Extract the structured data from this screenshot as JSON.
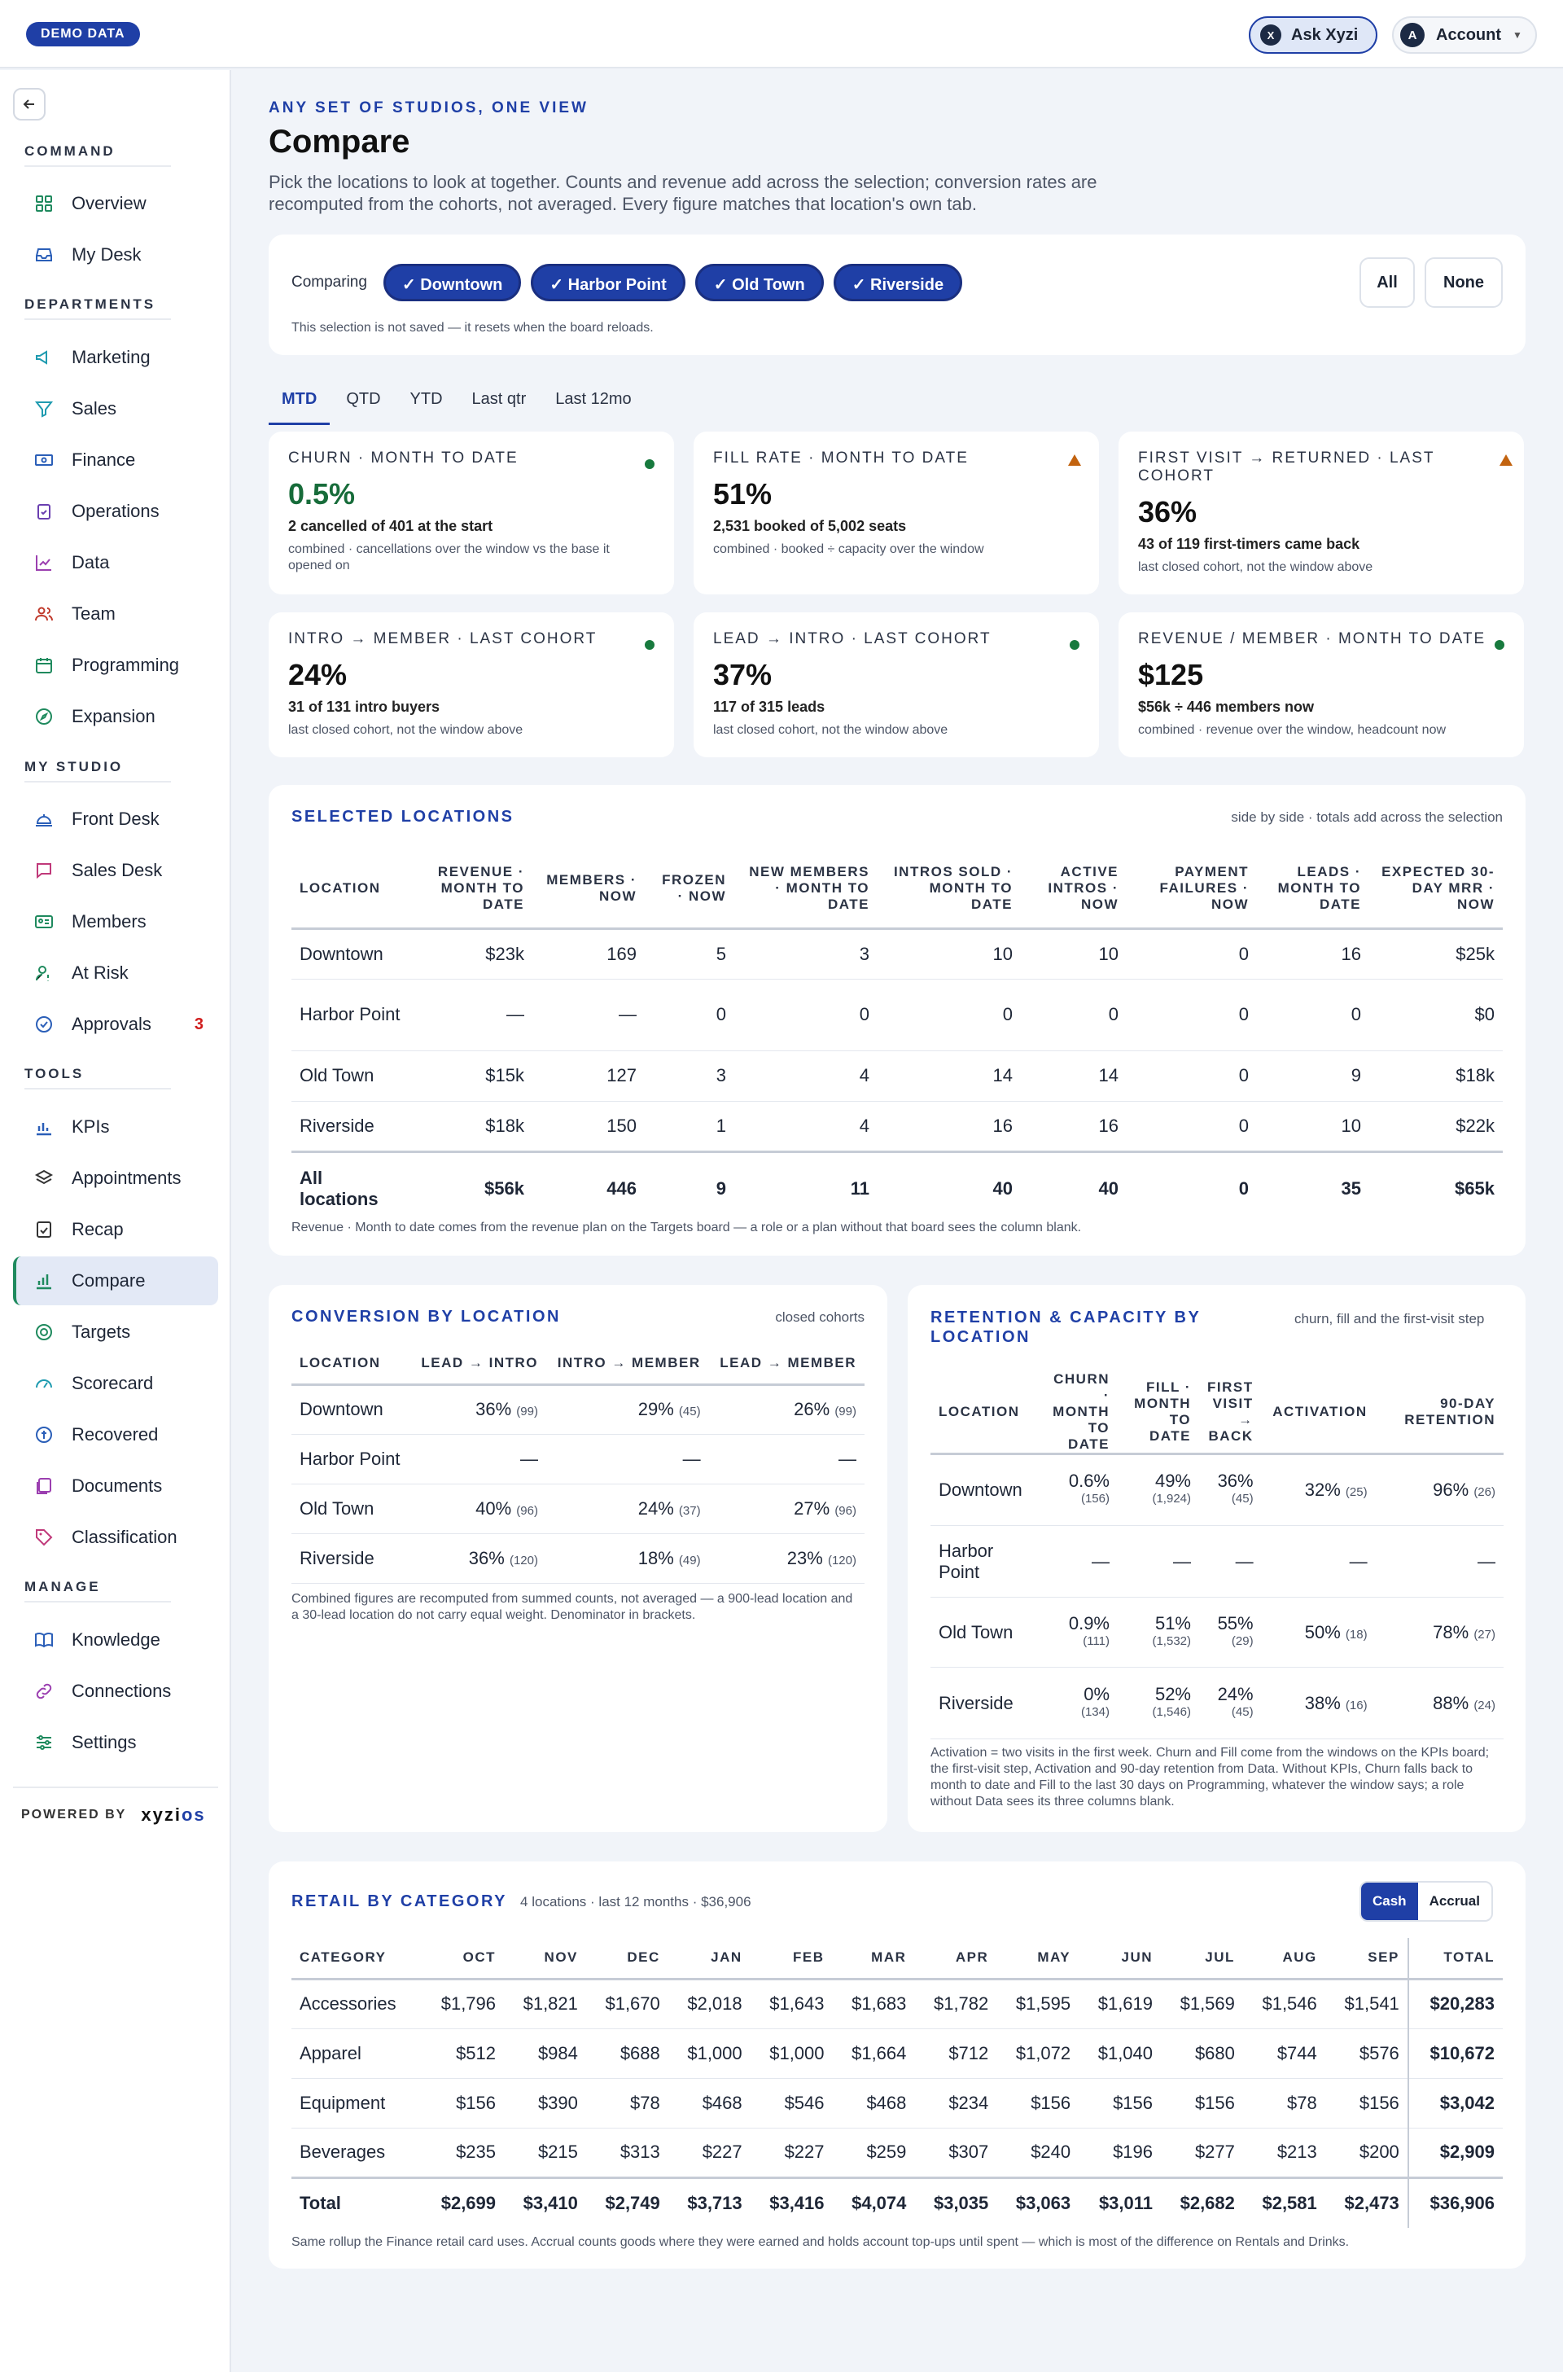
{
  "topbar": {
    "demo_badge": "DEMO DATA",
    "ask_label": "Ask Xyzi",
    "ask_icon_letter": "X",
    "account_label": "Account",
    "account_initial": "A"
  },
  "sidebar": {
    "sections": {
      "command": "COMMAND",
      "departments": "DEPARTMENTS",
      "my_studio": "MY STUDIO",
      "tools": "TOOLS",
      "manage": "MANAGE"
    },
    "items": {
      "overview": "Overview",
      "my_desk": "My Desk",
      "marketing": "Marketing",
      "sales": "Sales",
      "finance": "Finance",
      "operations": "Operations",
      "data": "Data",
      "team": "Team",
      "programming": "Programming",
      "expansion": "Expansion",
      "front_desk": "Front Desk",
      "sales_desk": "Sales Desk",
      "members": "Members",
      "at_risk": "At Risk",
      "approvals": "Approvals",
      "approvals_badge": "3",
      "kpis": "KPIs",
      "appointments": "Appointments",
      "recap": "Recap",
      "compare": "Compare",
      "targets": "Targets",
      "scorecard": "Scorecard",
      "recovered": "Recovered",
      "documents": "Documents",
      "classification": "Classification",
      "knowledge": "Knowledge",
      "connections": "Connections",
      "settings": "Settings"
    },
    "powered_by": "POWERED BY",
    "logo_a": "xyzi",
    "logo_b": "os"
  },
  "header": {
    "eyebrow": "ANY SET OF STUDIOS, ONE VIEW",
    "title": "Compare",
    "intro": "Pick the locations to look at together. Counts and revenue add across the selection; conversion rates are recomputed from the cohorts, not averaged. Every figure matches that location's own tab."
  },
  "selector": {
    "label": "Comparing",
    "locations": [
      "✓ Downtown",
      "✓ Harbor Point",
      "✓ Old Town",
      "✓ Riverside"
    ],
    "all": "All",
    "none": "None",
    "note": "This selection is not saved — it resets when the board reloads."
  },
  "tabs": [
    "MTD",
    "QTD",
    "YTD",
    "Last qtr",
    "Last 12mo"
  ],
  "kpis": [
    {
      "label": "CHURN · MONTH TO DATE",
      "value": "0.5%",
      "sub": "2 cancelled of 401 at the start",
      "note": "combined · cancellations over the window vs the base it opened on",
      "status": "good"
    },
    {
      "label": "FILL RATE · MONTH TO DATE",
      "value": "51%",
      "sub": "2,531 booked of 5,002 seats",
      "note": "combined · booked ÷ capacity over the window",
      "status": "warn"
    },
    {
      "label": "FIRST VISIT → RETURNED · LAST COHORT",
      "value": "36%",
      "sub": "43 of 119 first-timers came back",
      "note": "last closed cohort, not the window above",
      "status": "warn"
    },
    {
      "label": "INTRO → MEMBER · LAST COHORT",
      "value": "24%",
      "sub": "31 of 131 intro buyers",
      "note": "last closed cohort, not the window above",
      "status": "good"
    },
    {
      "label": "LEAD → INTRO · LAST COHORT",
      "value": "37%",
      "sub": "117 of 315 leads",
      "note": "last closed cohort, not the window above",
      "status": "good"
    },
    {
      "label": "REVENUE / MEMBER · MONTH TO DATE",
      "value": "$125",
      "sub": "$56k ÷ 446 members now",
      "note": "combined · revenue over the window, headcount now",
      "status": "good"
    }
  ],
  "selected": {
    "title": "SELECTED LOCATIONS",
    "hint": "side by side · totals add across the selection",
    "headers": [
      "LOCATION",
      "REVENUE · MONTH TO DATE",
      "MEMBERS · NOW",
      "FROZEN · NOW",
      "NEW MEMBERS · MONTH TO DATE",
      "INTROS SOLD · MONTH TO DATE",
      "ACTIVE INTROS · NOW",
      "PAYMENT FAILURES · NOW",
      "LEADS · MONTH TO DATE",
      "EXPECTED 30-DAY MRR · NOW"
    ],
    "rows": [
      [
        "Downtown",
        "$23k",
        "169",
        "5",
        "3",
        "10",
        "10",
        "0",
        "16",
        "$25k"
      ],
      [
        "Harbor Point",
        "—",
        "—",
        "0",
        "0",
        "0",
        "0",
        "0",
        "0",
        "$0"
      ],
      [
        "Old Town",
        "$15k",
        "127",
        "3",
        "4",
        "14",
        "14",
        "0",
        "9",
        "$18k"
      ],
      [
        "Riverside",
        "$18k",
        "150",
        "1",
        "4",
        "16",
        "16",
        "0",
        "10",
        "$22k"
      ]
    ],
    "total": [
      "All locations",
      "$56k",
      "446",
      "9",
      "11",
      "40",
      "40",
      "0",
      "35",
      "$65k"
    ],
    "footnote": "Revenue · Month to date comes from the revenue plan on the Targets board — a role or a plan without that board sees the column blank."
  },
  "conversion": {
    "title": "CONVERSION BY LOCATION",
    "hint": "closed cohorts",
    "headers": [
      "LOCATION",
      "LEAD → INTRO",
      "INTRO → MEMBER",
      "LEAD → MEMBER"
    ],
    "rows": [
      {
        "loc": "Downtown",
        "c": [
          [
            "36%",
            "(99)"
          ],
          [
            "29%",
            "(45)"
          ],
          [
            "26%",
            "(99)"
          ]
        ]
      },
      {
        "loc": "Harbor Point",
        "c": [
          [
            "—",
            ""
          ],
          [
            "—",
            ""
          ],
          [
            "—",
            ""
          ]
        ]
      },
      {
        "loc": "Old Town",
        "c": [
          [
            "40%",
            "(96)"
          ],
          [
            "24%",
            "(37)"
          ],
          [
            "27%",
            "(96)"
          ]
        ]
      },
      {
        "loc": "Riverside",
        "c": [
          [
            "36%",
            "(120)"
          ],
          [
            "18%",
            "(49)"
          ],
          [
            "23%",
            "(120)"
          ]
        ]
      }
    ],
    "footnote": "Combined figures are recomputed from summed counts, not averaged — a 900-lead location and a 30-lead location do not carry equal weight. Denominator in brackets."
  },
  "retention": {
    "title": "RETENTION & CAPACITY BY LOCATION",
    "hint": "churn, fill and the first-visit step",
    "headers": [
      "LOCATION",
      "CHURN · MONTH TO DATE",
      "FILL · MONTH TO DATE",
      "FIRST VISIT → BACK",
      "ACTIVATION",
      "90-DAY RETENTION"
    ],
    "rows": [
      {
        "loc": "Downtown",
        "c": [
          [
            "0.6%",
            "(156)"
          ],
          [
            "49%",
            "(1,924)"
          ],
          [
            "36%",
            "(45)"
          ],
          [
            "32%",
            "(25)"
          ],
          [
            "96%",
            "(26)"
          ]
        ]
      },
      {
        "loc": "Harbor Point",
        "c": [
          [
            "—",
            ""
          ],
          [
            "—",
            ""
          ],
          [
            "—",
            ""
          ],
          [
            "—",
            ""
          ],
          [
            "—",
            ""
          ]
        ]
      },
      {
        "loc": "Old Town",
        "c": [
          [
            "0.9%",
            "(111)"
          ],
          [
            "51%",
            "(1,532)"
          ],
          [
            "55%",
            "(29)"
          ],
          [
            "50%",
            "(18)"
          ],
          [
            "78%",
            "(27)"
          ]
        ]
      },
      {
        "loc": "Riverside",
        "c": [
          [
            "0%",
            "(134)"
          ],
          [
            "52%",
            "(1,546)"
          ],
          [
            "24%",
            "(45)"
          ],
          [
            "38%",
            "(16)"
          ],
          [
            "88%",
            "(24)"
          ]
        ]
      }
    ],
    "footnote": "Activation = two visits in the first week. Churn and Fill come from the windows on the KPIs board; the first-visit step, Activation and 90-day retention from Data. Without KPIs, Churn falls back to month to date and Fill to the last 30 days on Programming, whatever the window says; a role without Data sees its three columns blank."
  },
  "retail": {
    "title": "RETAIL BY CATEGORY",
    "meta": "4 locations · last 12 months · $36,906",
    "toggle": [
      "Cash",
      "Accrual"
    ],
    "headers": [
      "CATEGORY",
      "OCT",
      "NOV",
      "DEC",
      "JAN",
      "FEB",
      "MAR",
      "APR",
      "MAY",
      "JUN",
      "JUL",
      "AUG",
      "SEP",
      "TOTAL"
    ],
    "rows": [
      [
        "Accessories",
        "$1,796",
        "$1,821",
        "$1,670",
        "$2,018",
        "$1,643",
        "$1,683",
        "$1,782",
        "$1,595",
        "$1,619",
        "$1,569",
        "$1,546",
        "$1,541",
        "$20,283"
      ],
      [
        "Apparel",
        "$512",
        "$984",
        "$688",
        "$1,000",
        "$1,000",
        "$1,664",
        "$712",
        "$1,072",
        "$1,040",
        "$680",
        "$744",
        "$576",
        "$10,672"
      ],
      [
        "Equipment",
        "$156",
        "$390",
        "$78",
        "$468",
        "$546",
        "$468",
        "$234",
        "$156",
        "$156",
        "$156",
        "$78",
        "$156",
        "$3,042"
      ],
      [
        "Beverages",
        "$235",
        "$215",
        "$313",
        "$227",
        "$227",
        "$259",
        "$307",
        "$240",
        "$196",
        "$277",
        "$213",
        "$200",
        "$2,909"
      ]
    ],
    "total": [
      "Total",
      "$2,699",
      "$3,410",
      "$2,749",
      "$3,713",
      "$3,416",
      "$4,074",
      "$3,035",
      "$3,063",
      "$3,011",
      "$2,682",
      "$2,581",
      "$2,473",
      "$36,906"
    ],
    "footnote": "Same rollup the Finance retail card uses. Accrual counts goods where they were earned and holds account top-ups until spent — which is most of the difference on Rentals and Drinks."
  }
}
